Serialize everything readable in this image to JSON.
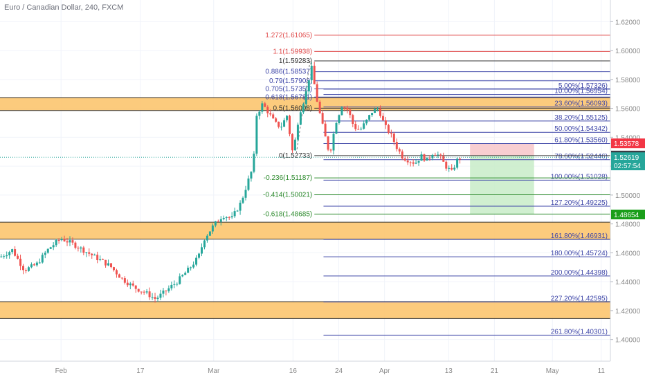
{
  "chart_data": {
    "type": "candlestick",
    "title": "Euro / Canadian Dollar, 240, FXCM",
    "y_range": [
      1.385,
      1.635
    ],
    "x_range": [
      0,
      100
    ],
    "y_ticks": [
      "1.62000",
      "1.60000",
      "1.58000",
      "1.56000",
      "1.54000",
      "1.52000",
      "1.50000",
      "1.48000",
      "1.46000",
      "1.44000",
      "1.42000",
      "1.40000"
    ],
    "x_ticks": [
      {
        "label": "Feb",
        "x": 10
      },
      {
        "label": "17",
        "x": 23
      },
      {
        "label": "Mar",
        "x": 35
      },
      {
        "label": "16",
        "x": 48
      },
      {
        "label": "24",
        "x": 55.5
      },
      {
        "label": "Apr",
        "x": 63
      },
      {
        "label": "13",
        "x": 73.5
      },
      {
        "label": "21",
        "x": 81
      },
      {
        "label": "May",
        "x": 90.5
      },
      {
        "label": "11",
        "x": 98.5
      }
    ],
    "zones": [
      {
        "y1": 1.5675,
        "y2": 1.5585
      },
      {
        "y1": 1.4812,
        "y2": 1.4695
      },
      {
        "y1": 1.4262,
        "y2": 1.4145
      }
    ],
    "retracement_1": {
      "x_start": 51.5,
      "x_end": 100,
      "levels": [
        {
          "label": "1.272(1.61065)",
          "value": 1.61065,
          "color": "#e04a4a"
        },
        {
          "label": "1.1(1.59938)",
          "value": 1.59938,
          "color": "#e04a4a"
        },
        {
          "label": "1(1.59283)",
          "value": 1.59283,
          "color": "#333333"
        },
        {
          "label": "0.886(1.58537)",
          "value": 1.58537,
          "color": "#3f47a8"
        },
        {
          "label": "0.79(1.57908)",
          "value": 1.57908,
          "color": "#3f47a8"
        },
        {
          "label": "0.705(1.57351)",
          "value": 1.57351,
          "color": "#3f47a8"
        },
        {
          "label": "0.618(1.56781)",
          "value": 1.56781,
          "color": "#3f47a8"
        },
        {
          "label": "0.5(1.56008)",
          "value": 1.56008,
          "color": "#333333"
        },
        {
          "label": "0(1.52733)",
          "value": 1.52733,
          "color": "#333333"
        },
        {
          "label": "-0.236(1.51187)",
          "value": 1.51187,
          "color": "#2e8b2e"
        },
        {
          "label": "-0.414(1.50021)",
          "value": 1.50021,
          "color": "#2e8b2e"
        },
        {
          "label": "-0.618(1.48685)",
          "value": 1.48685,
          "color": "#2e8b2e"
        }
      ]
    },
    "retracement_2": {
      "x_start": 53,
      "x_end": 100,
      "levels": [
        {
          "label": "5.00%(1.57326)",
          "value": 1.57326
        },
        {
          "label": "10.00%(1.56954)",
          "value": 1.56954
        },
        {
          "label": "23.60%(1.56093)",
          "value": 1.56093
        },
        {
          "label": "38.20%(1.55125)",
          "value": 1.55125
        },
        {
          "label": "50.00%(1.54342)",
          "value": 1.54342
        },
        {
          "label": "61.80%(1.53560)",
          "value": 1.5356
        },
        {
          "label": "78.60%(1.52446)",
          "value": 1.52446
        },
        {
          "label": "100.00%(1.51028)",
          "value": 1.51028
        },
        {
          "label": "127.20%(1.49225)",
          "value": 1.49225
        },
        {
          "label": "161.80%(1.46931)",
          "value": 1.46931
        },
        {
          "label": "180.00%(1.45724)",
          "value": 1.45724
        },
        {
          "label": "200.00%(1.44398)",
          "value": 1.44398
        },
        {
          "label": "227.20%(1.42595)",
          "value": 1.42595
        },
        {
          "label": "261.80%(1.40301)",
          "value": 1.40301
        }
      ]
    },
    "position": {
      "x1": 77,
      "x2": 87.5,
      "stop": 1.53578,
      "entry": 1.52733,
      "target": 1.48654
    },
    "price_badges": [
      {
        "value": 1.53578,
        "label": "1.53578",
        "bg": "#f23645",
        "fg": "#ffffff"
      },
      {
        "value": 1.52733,
        "label": "1.52733",
        "bg": "#3a3d45",
        "fg": "#ffffff"
      },
      {
        "value": 1.52619,
        "label": "1.52619",
        "bg": "#26a69a",
        "fg": "#ffffff"
      },
      {
        "value": 1.5205,
        "label": "02:57:54",
        "bg": "#26a69a",
        "fg": "#ffffff"
      },
      {
        "value": 1.48654,
        "label": "1.48654",
        "bg": "#1a9e1a",
        "fg": "#ffffff"
      }
    ],
    "current_price": 1.52619,
    "price_path": [
      [
        0,
        1.457
      ],
      [
        2,
        1.462
      ],
      [
        4,
        1.448
      ],
      [
        6,
        1.452
      ],
      [
        8,
        1.463
      ],
      [
        10,
        1.47
      ],
      [
        12,
        1.466
      ],
      [
        14,
        1.461
      ],
      [
        16,
        1.456
      ],
      [
        18,
        1.451
      ],
      [
        20,
        1.442
      ],
      [
        22,
        1.436
      ],
      [
        24,
        1.432
      ],
      [
        25.5,
        1.428
      ],
      [
        27,
        1.433
      ],
      [
        29,
        1.44
      ],
      [
        31,
        1.449
      ],
      [
        32.5,
        1.457
      ],
      [
        33.5,
        1.47
      ],
      [
        35,
        1.479
      ],
      [
        36.5,
        1.486
      ],
      [
        38,
        1.484
      ],
      [
        39.5,
        1.495
      ],
      [
        40.5,
        1.508
      ],
      [
        41.5,
        1.52
      ],
      [
        42,
        1.555
      ],
      [
        43,
        1.563
      ],
      [
        44,
        1.557
      ],
      [
        45,
        1.55
      ],
      [
        46,
        1.547
      ],
      [
        47,
        1.555
      ],
      [
        48,
        1.528
      ],
      [
        49,
        1.556
      ],
      [
        50,
        1.568
      ],
      [
        51,
        1.589
      ],
      [
        52,
        1.564
      ],
      [
        53,
        1.545
      ],
      [
        54,
        1.528
      ],
      [
        55,
        1.55
      ],
      [
        56,
        1.562
      ],
      [
        57,
        1.559
      ],
      [
        58,
        1.547
      ],
      [
        59,
        1.545
      ],
      [
        60,
        1.551
      ],
      [
        61,
        1.558
      ],
      [
        62,
        1.56
      ],
      [
        63,
        1.548
      ],
      [
        64,
        1.542
      ],
      [
        65,
        1.533
      ],
      [
        66,
        1.526
      ],
      [
        67,
        1.524
      ],
      [
        68,
        1.522
      ],
      [
        69,
        1.527
      ],
      [
        70,
        1.524
      ],
      [
        71,
        1.53
      ],
      [
        72,
        1.527
      ],
      [
        73,
        1.52
      ],
      [
        74,
        1.516
      ],
      [
        75,
        1.525
      ],
      [
        75.8,
        1.526
      ]
    ]
  }
}
